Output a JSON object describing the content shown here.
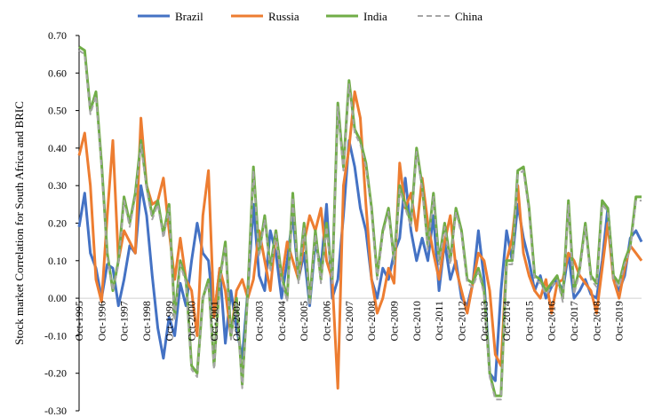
{
  "chart_data": {
    "type": "line",
    "title": "",
    "xlabel": "",
    "ylabel": "Stock market Correlation for South Africa and BRIC",
    "ylim": [
      -0.3,
      0.7
    ],
    "yticks": [
      "0.70",
      "0.60",
      "0.50",
      "0.40",
      "0.30",
      "0.20",
      "0.10",
      "0.00",
      "-0.10",
      "-0.20",
      "-0.30"
    ],
    "x_range": [
      1995.75,
      2020.75
    ],
    "x_tick_labels": [
      "Oct-1995",
      "Oct-1996",
      "Oct-1997",
      "Oct-1998",
      "Oct-1999",
      "Oct-2000",
      "Oct-2001",
      "Oct-2002",
      "Oct-2003",
      "Oct-2004",
      "Oct-2005",
      "Oct-2006",
      "Oct-2007",
      "Oct-2008",
      "Oct-2009",
      "Oct-2010",
      "Oct-2011",
      "Oct-2012",
      "Oct-2013",
      "Oct-2014",
      "Oct-2015",
      "Oct-2016",
      "Oct-2017",
      "Oct-2018",
      "Oct-2019"
    ],
    "legend_position": "top",
    "grid": false,
    "x": [
      1995.75,
      1996.0,
      1996.25,
      1996.5,
      1996.75,
      1997.0,
      1997.25,
      1997.5,
      1997.75,
      1998.0,
      1998.25,
      1998.5,
      1998.75,
      1999.0,
      1999.25,
      1999.5,
      1999.75,
      2000.0,
      2000.25,
      2000.5,
      2000.75,
      2001.0,
      2001.25,
      2001.5,
      2001.75,
      2002.0,
      2002.25,
      2002.5,
      2002.75,
      2003.0,
      2003.25,
      2003.5,
      2003.75,
      2004.0,
      2004.25,
      2004.5,
      2004.75,
      2005.0,
      2005.25,
      2005.5,
      2005.75,
      2006.0,
      2006.25,
      2006.5,
      2006.75,
      2007.0,
      2007.25,
      2007.5,
      2007.75,
      2008.0,
      2008.25,
      2008.5,
      2008.75,
      2009.0,
      2009.25,
      2009.5,
      2009.75,
      2010.0,
      2010.25,
      2010.5,
      2010.75,
      2011.0,
      2011.25,
      2011.5,
      2011.75,
      2012.0,
      2012.25,
      2012.5,
      2012.75,
      2013.0,
      2013.25,
      2013.5,
      2013.75,
      2014.0,
      2014.25,
      2014.5,
      2014.75,
      2015.0,
      2015.25,
      2015.5,
      2015.75,
      2016.0,
      2016.25,
      2016.5,
      2016.75,
      2017.0,
      2017.25,
      2017.5,
      2017.75,
      2018.0,
      2018.25,
      2018.5,
      2018.75,
      2019.0,
      2019.25,
      2019.5,
      2019.75,
      2020.0,
      2020.25,
      2020.5,
      2020.75
    ],
    "series": [
      {
        "name": "Brazil",
        "color": "#4472C4",
        "dashed": false,
        "values": [
          0.19,
          0.28,
          0.12,
          0.08,
          0.0,
          0.09,
          0.08,
          -0.02,
          0.05,
          0.14,
          0.12,
          0.3,
          0.22,
          0.06,
          -0.08,
          -0.16,
          -0.05,
          -0.1,
          0.04,
          -0.02,
          0.1,
          0.2,
          0.12,
          0.1,
          -0.05,
          0.08,
          -0.12,
          0.02,
          -0.08,
          -0.16,
          0.02,
          0.25,
          0.06,
          0.02,
          0.18,
          0.12,
          0.0,
          0.1,
          0.22,
          0.05,
          0.12,
          -0.02,
          0.15,
          0.08,
          0.25,
          0.0,
          0.05,
          0.22,
          0.42,
          0.35,
          0.24,
          0.18,
          0.05,
          0.0,
          0.08,
          0.05,
          0.12,
          0.16,
          0.32,
          0.18,
          0.1,
          0.16,
          0.1,
          0.22,
          0.02,
          0.15,
          0.05,
          0.1,
          0.0,
          -0.02,
          0.04,
          0.18,
          0.05,
          -0.2,
          -0.22,
          0.02,
          0.18,
          0.1,
          0.25,
          0.16,
          0.1,
          0.02,
          0.06,
          0.0,
          0.03,
          0.05,
          0.02,
          0.12,
          0.0,
          0.02,
          0.05,
          0.01,
          0.0,
          0.1,
          0.24,
          0.05,
          0.02,
          0.06,
          0.16,
          0.18,
          0.15
        ]
      },
      {
        "name": "Russia",
        "color": "#ED7D31",
        "dashed": false,
        "values": [
          0.38,
          0.44,
          0.3,
          0.05,
          -0.01,
          0.22,
          0.42,
          0.1,
          0.18,
          0.15,
          0.12,
          0.48,
          0.3,
          0.25,
          0.26,
          0.32,
          0.18,
          0.05,
          0.16,
          0.05,
          0.02,
          -0.1,
          0.22,
          0.34,
          -0.05,
          0.08,
          0.02,
          -0.1,
          0.02,
          0.05,
          0.0,
          0.05,
          0.18,
          0.1,
          0.02,
          0.18,
          0.05,
          0.15,
          0.1,
          0.05,
          0.15,
          0.22,
          0.18,
          0.24,
          0.1,
          0.05,
          -0.24,
          0.3,
          0.4,
          0.55,
          0.48,
          0.25,
          0.05,
          -0.04,
          0.0,
          0.08,
          0.04,
          0.36,
          0.24,
          0.28,
          0.18,
          0.32,
          0.2,
          0.12,
          0.05,
          0.15,
          0.22,
          0.08,
          0.02,
          -0.04,
          0.04,
          0.12,
          0.1,
          0.02,
          -0.15,
          -0.18,
          0.1,
          0.16,
          0.3,
          0.12,
          0.06,
          0.02,
          0.0,
          0.05,
          -0.04,
          0.04,
          0.05,
          0.12,
          0.1,
          0.06,
          0.04,
          0.02,
          -0.04,
          0.08,
          0.2,
          0.05,
          0.0,
          0.08,
          0.14,
          0.12,
          0.1
        ]
      },
      {
        "name": "India",
        "color": "#70AD47",
        "dashed": false,
        "values": [
          0.67,
          0.66,
          0.5,
          0.55,
          0.36,
          0.12,
          0.02,
          0.1,
          0.27,
          0.2,
          0.28,
          0.42,
          0.3,
          0.22,
          0.26,
          0.17,
          0.25,
          -0.05,
          0.1,
          0.05,
          -0.18,
          -0.2,
          0.0,
          0.05,
          -0.18,
          0.05,
          0.15,
          -0.1,
          0.0,
          -0.23,
          0.02,
          0.35,
          0.12,
          0.22,
          0.08,
          0.18,
          0.06,
          0.0,
          0.28,
          0.05,
          0.2,
          -0.01,
          0.18,
          0.05,
          0.2,
          0.05,
          0.52,
          0.35,
          0.58,
          0.45,
          0.42,
          0.36,
          0.24,
          0.06,
          0.18,
          0.24,
          0.1,
          0.3,
          0.25,
          0.2,
          0.4,
          0.3,
          0.14,
          0.28,
          0.1,
          0.2,
          0.1,
          0.24,
          0.18,
          0.05,
          0.04,
          0.08,
          0.02,
          -0.2,
          -0.26,
          -0.26,
          0.1,
          0.1,
          0.34,
          0.35,
          0.24,
          0.06,
          0.05,
          0.02,
          0.04,
          0.06,
          0.0,
          0.26,
          0.02,
          0.08,
          0.2,
          0.06,
          0.04,
          0.26,
          0.24,
          0.06,
          0.04,
          0.1,
          0.14,
          0.27,
          0.27
        ]
      },
      {
        "name": "China",
        "color": "#A5A5A5",
        "dashed": true,
        "values": [
          0.66,
          0.65,
          0.49,
          0.54,
          0.35,
          0.11,
          0.02,
          0.09,
          0.26,
          0.19,
          0.27,
          0.41,
          0.29,
          0.21,
          0.25,
          0.16,
          0.24,
          -0.06,
          0.09,
          0.04,
          -0.19,
          -0.21,
          0.0,
          0.04,
          -0.19,
          0.04,
          0.14,
          -0.11,
          -0.01,
          -0.24,
          0.01,
          0.34,
          0.11,
          0.21,
          0.07,
          0.17,
          0.05,
          -0.01,
          0.27,
          0.04,
          0.19,
          -0.02,
          0.17,
          0.04,
          0.19,
          0.04,
          0.51,
          0.34,
          0.57,
          0.44,
          0.41,
          0.35,
          0.23,
          0.05,
          0.17,
          0.23,
          0.09,
          0.29,
          0.24,
          0.19,
          0.39,
          0.29,
          0.13,
          0.27,
          0.09,
          0.19,
          0.09,
          0.23,
          0.17,
          0.04,
          0.03,
          0.07,
          0.01,
          -0.21,
          -0.27,
          -0.27,
          0.09,
          0.09,
          0.33,
          0.34,
          0.23,
          0.05,
          0.04,
          0.01,
          0.03,
          0.05,
          -0.01,
          0.25,
          0.01,
          0.07,
          0.19,
          0.05,
          0.03,
          0.25,
          0.23,
          0.05,
          0.03,
          0.09,
          0.13,
          0.26,
          0.26
        ]
      }
    ]
  }
}
